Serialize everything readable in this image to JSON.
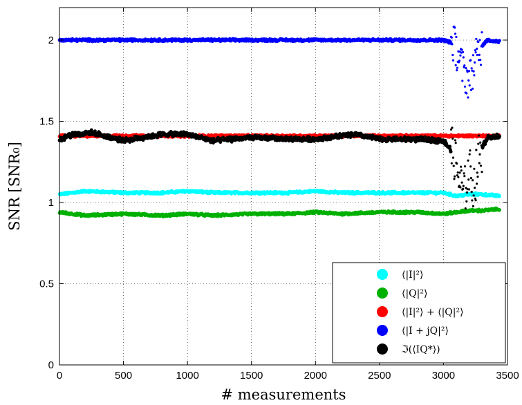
{
  "chart_data": {
    "type": "scatter",
    "xlabel": "# measurements",
    "ylabel": "SNR [SNR₀]",
    "xlim": [
      0,
      3500
    ],
    "ylim": [
      0,
      2.2
    ],
    "xticks": [
      0,
      500,
      1000,
      1500,
      2000,
      2500,
      3000,
      3500
    ],
    "yticks": [
      0,
      0.5,
      1,
      1.5,
      2
    ],
    "xtick_labels": [
      "0",
      "500",
      "1000",
      "1500",
      "2000",
      "2500",
      "3000",
      "3500"
    ],
    "ytick_labels": [
      "0",
      "0.5",
      "1",
      "1.5",
      "2"
    ],
    "grid": true,
    "legend_position": "bottom-right",
    "n_points": 3440,
    "series": [
      {
        "name": "⟨|I|²⟩",
        "color": "#00ffff",
        "x": [
          0,
          200,
          500,
          800,
          1000,
          1200,
          1500,
          1800,
          2000,
          2200,
          2500,
          2800,
          3000,
          3100,
          3200,
          3300,
          3440
        ],
        "y": [
          1.05,
          1.07,
          1.06,
          1.06,
          1.07,
          1.06,
          1.06,
          1.06,
          1.07,
          1.06,
          1.06,
          1.06,
          1.06,
          1.04,
          1.05,
          1.05,
          1.04
        ]
      },
      {
        "name": "⟨|Q|²⟩",
        "color": "#00b000",
        "x": [
          0,
          200,
          500,
          800,
          1000,
          1200,
          1500,
          1800,
          2000,
          2200,
          2500,
          2800,
          3000,
          3100,
          3200,
          3300,
          3440
        ],
        "y": [
          0.94,
          0.92,
          0.93,
          0.92,
          0.93,
          0.92,
          0.93,
          0.93,
          0.94,
          0.93,
          0.94,
          0.94,
          0.93,
          0.94,
          0.95,
          0.95,
          0.96
        ]
      },
      {
        "name": "⟨|I|²⟩ + ⟨|Q|²⟩",
        "color": "#ff0000",
        "x": [
          0,
          500,
          1000,
          1500,
          2000,
          2500,
          3000,
          3100,
          3200,
          3300,
          3440
        ],
        "y": [
          1.41,
          1.41,
          1.41,
          1.41,
          1.41,
          1.41,
          1.41,
          1.41,
          1.41,
          1.41,
          1.41
        ]
      },
      {
        "name": "⟨|I + jQ|²⟩",
        "color": "#0000ff",
        "x": [
          0,
          500,
          1000,
          1500,
          2000,
          2500,
          3000,
          3080,
          3120,
          3160,
          3200,
          3240,
          3280,
          3340,
          3440
        ],
        "y": [
          2.0,
          2.0,
          2.0,
          2.0,
          2.0,
          2.0,
          2.0,
          1.98,
          1.9,
          1.8,
          1.75,
          1.85,
          1.95,
          2.0,
          1.99
        ]
      },
      {
        "name": "ℑ(⟨IQ*⟩)",
        "color": "#000000",
        "x": [
          0,
          100,
          250,
          500,
          800,
          1000,
          1200,
          1500,
          1800,
          2000,
          2300,
          2500,
          2800,
          3000,
          3080,
          3120,
          3160,
          3200,
          3240,
          3280,
          3340,
          3440
        ],
        "y": [
          1.39,
          1.42,
          1.43,
          1.38,
          1.42,
          1.42,
          1.38,
          1.4,
          1.39,
          1.39,
          1.42,
          1.39,
          1.39,
          1.38,
          1.3,
          1.15,
          1.05,
          1.2,
          1.1,
          1.3,
          1.4,
          1.41
        ]
      }
    ]
  }
}
